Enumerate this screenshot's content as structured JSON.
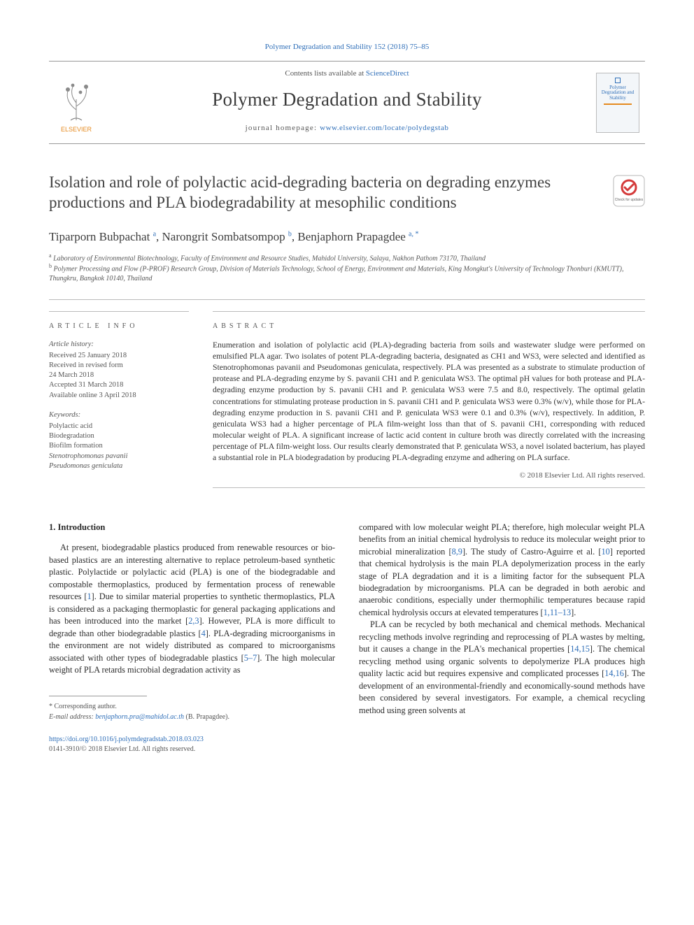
{
  "top_link": "Polymer Degradation and Stability 152 (2018) 75–85",
  "masthead": {
    "contents_prefix": "Contents lists available at ",
    "contents_link": "ScienceDirect",
    "journal": "Polymer Degradation and Stability",
    "homepage_prefix": "journal homepage: ",
    "homepage_url": "www.elsevier.com/locate/polydegstab",
    "publisher_label": "ELSEVIER",
    "cover_text": "Polymer Degradation and Stability"
  },
  "title": "Isolation and role of polylactic acid-degrading bacteria on degrading enzymes productions and PLA biodegradability at mesophilic conditions",
  "authors_html": "Tiparporn Bubpachat <sup class='sup'>a</sup>, Narongrit Sombatsompop <sup class='sup'>b</sup>, Benjaphorn Prapagdee <sup class='sup'>a, *</sup>",
  "affiliations": {
    "a": "Laboratory of Environmental Biotechnology, Faculty of Environment and Resource Studies, Mahidol University, Salaya, Nakhon Pathom 73170, Thailand",
    "b": "Polymer Processing and Flow (P-PROF) Research Group, Division of Materials Technology, School of Energy, Environment and Materials, King Mongkut's University of Technology Thonburi (KMUTT), Thungkru, Bangkok 10140, Thailand"
  },
  "article_info": {
    "heading": "ARTICLE INFO",
    "history_label": "Article history:",
    "history": [
      "Received 25 January 2018",
      "Received in revised form",
      "24 March 2018",
      "Accepted 31 March 2018",
      "Available online 3 April 2018"
    ],
    "keywords_label": "Keywords:",
    "keywords": [
      "Polylactic acid",
      "Biodegradation",
      "Biofilm formation",
      "Stenotrophomonas pavanii",
      "Pseudomonas geniculata"
    ]
  },
  "abstract": {
    "heading": "ABSTRACT",
    "text": "Enumeration and isolation of polylactic acid (PLA)-degrading bacteria from soils and wastewater sludge were performed on emulsified PLA agar. Two isolates of potent PLA-degrading bacteria, designated as CH1 and WS3, were selected and identified as Stenotrophomonas pavanii and Pseudomonas geniculata, respectively. PLA was presented as a substrate to stimulate production of protease and PLA-degrading enzyme by S. pavanii CH1 and P. geniculata WS3. The optimal pH values for both protease and PLA-degrading enzyme production by S. pavanii CH1 and P. geniculata WS3 were 7.5 and 8.0, respectively. The optimal gelatin concentrations for stimulating protease production in S. pavanii CH1 and P. geniculata WS3 were 0.3% (w/v), while those for PLA-degrading enzyme production in S. pavanii CH1 and P. geniculata WS3 were 0.1 and 0.3% (w/v), respectively. In addition, P. geniculata WS3 had a higher percentage of PLA film-weight loss than that of S. pavanii CH1, corresponding with reduced molecular weight of PLA. A significant increase of lactic acid content in culture broth was directly correlated with the increasing percentage of PLA film-weight loss. Our results clearly demonstrated that P. geniculata WS3, a novel isolated bacterium, has played a substantial role in PLA biodegradation by producing PLA-degrading enzyme and adhering on PLA surface.",
    "copyright": "© 2018 Elsevier Ltd. All rights reserved."
  },
  "body": {
    "section_heading": "1. Introduction",
    "left_para": "At present, biodegradable plastics produced from renewable resources or bio-based plastics are an interesting alternative to replace petroleum-based synthetic plastic. Polylactide or polylactic acid (PLA) is one of the biodegradable and compostable thermoplastics, produced by fermentation process of renewable resources [1]. Due to similar material properties to synthetic thermoplastics, PLA is considered as a packaging thermoplastic for general packaging applications and has been introduced into the market [2,3]. However, PLA is more difficult to degrade than other biodegradable plastics [4]. PLA-degrading microorganisms in the environment are not widely distributed as compared to microorganisms associated with other types of biodegradable plastics [5–7]. The high molecular weight of PLA retards microbial degradation activity as",
    "right_para1": "compared with low molecular weight PLA; therefore, high molecular weight PLA benefits from an initial chemical hydrolysis to reduce its molecular weight prior to microbial mineralization [8,9]. The study of Castro-Aguirre et al. [10] reported that chemical hydrolysis is the main PLA depolymerization process in the early stage of PLA degradation and it is a limiting factor for the subsequent PLA biodegradation by microorganisms. PLA can be degraded in both aerobic and anaerobic conditions, especially under thermophilic temperatures because rapid chemical hydrolysis occurs at elevated temperatures [1,11–13].",
    "right_para2": "PLA can be recycled by both mechanical and chemical methods. Mechanical recycling methods involve regrinding and reprocessing of PLA wastes by melting, but it causes a change in the PLA's mechanical properties [14,15]. The chemical recycling method using organic solvents to depolymerize PLA produces high quality lactic acid but requires expensive and complicated processes [14,16]. The development of an environmental-friendly and economically-sound methods have been considered by several investigators. For example, a chemical recycling method using green solvents at"
  },
  "corresponding": {
    "star": "* Corresponding author.",
    "email_label": "E-mail address:",
    "email": "benjaphorn.pra@mahidol.ac.th",
    "name_suffix": "(B. Prapagdee)."
  },
  "footer": {
    "doi": "https://doi.org/10.1016/j.polymdegradstab.2018.03.023",
    "issn_line": "0141-3910/© 2018 Elsevier Ltd. All rights reserved."
  },
  "colors": {
    "link": "#2e6eb8",
    "text": "#333333",
    "muted": "#555555",
    "rule": "#bbbbbb",
    "elsevier_orange": "#e58a1f"
  }
}
